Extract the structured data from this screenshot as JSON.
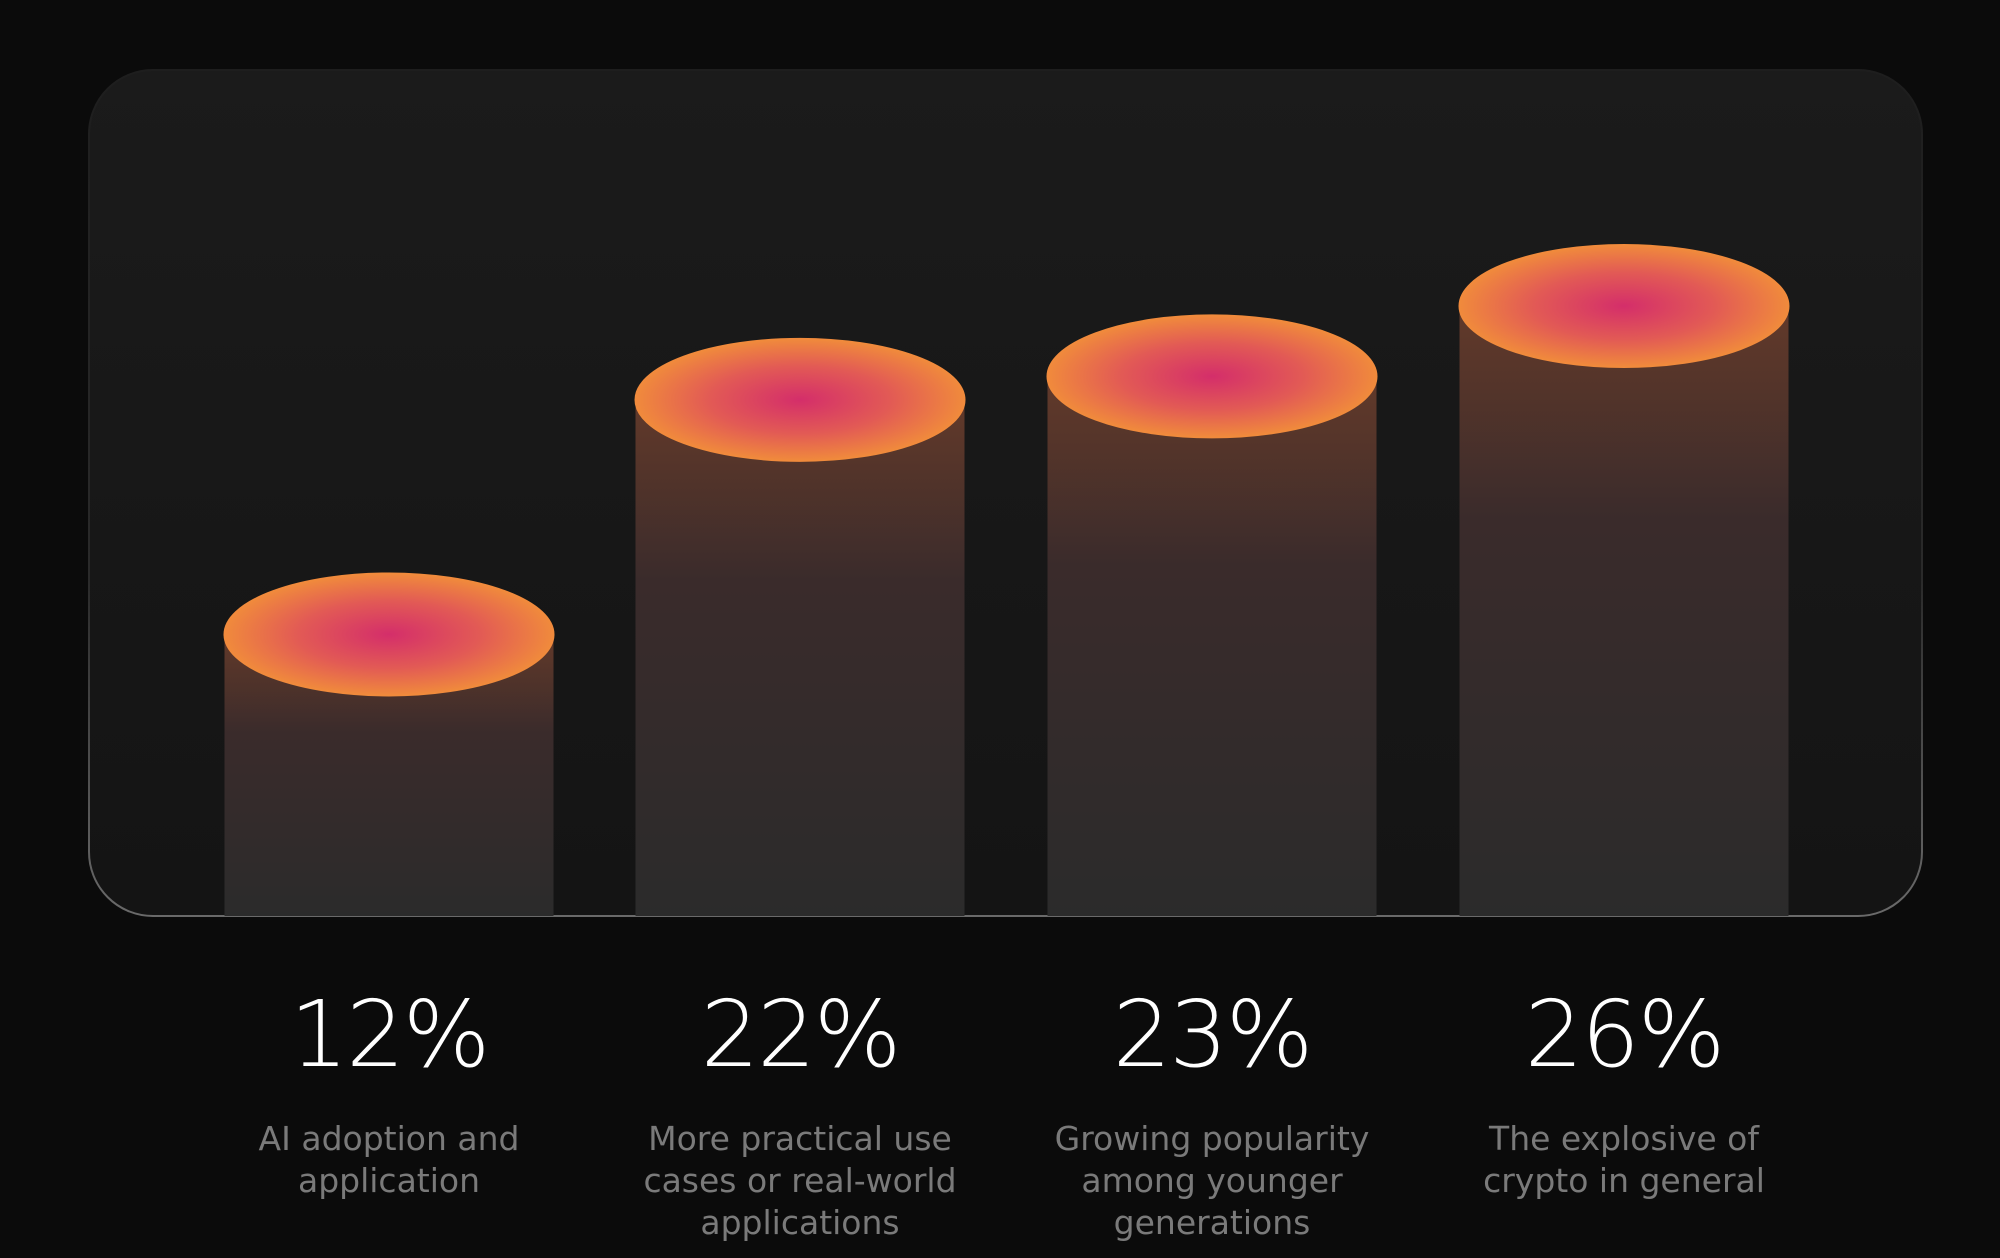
{
  "chart_data": {
    "type": "cylinder",
    "categories": [
      "AI adoption and application",
      "More practical use cases or real-world applications",
      "Growing popularity among younger generations",
      "The explosive of crypto in general"
    ],
    "values": [
      12,
      22,
      23,
      26
    ],
    "value_labels": [
      "12%",
      "22%",
      "23%",
      "26%"
    ],
    "color": "#f08a3c"
  }
}
